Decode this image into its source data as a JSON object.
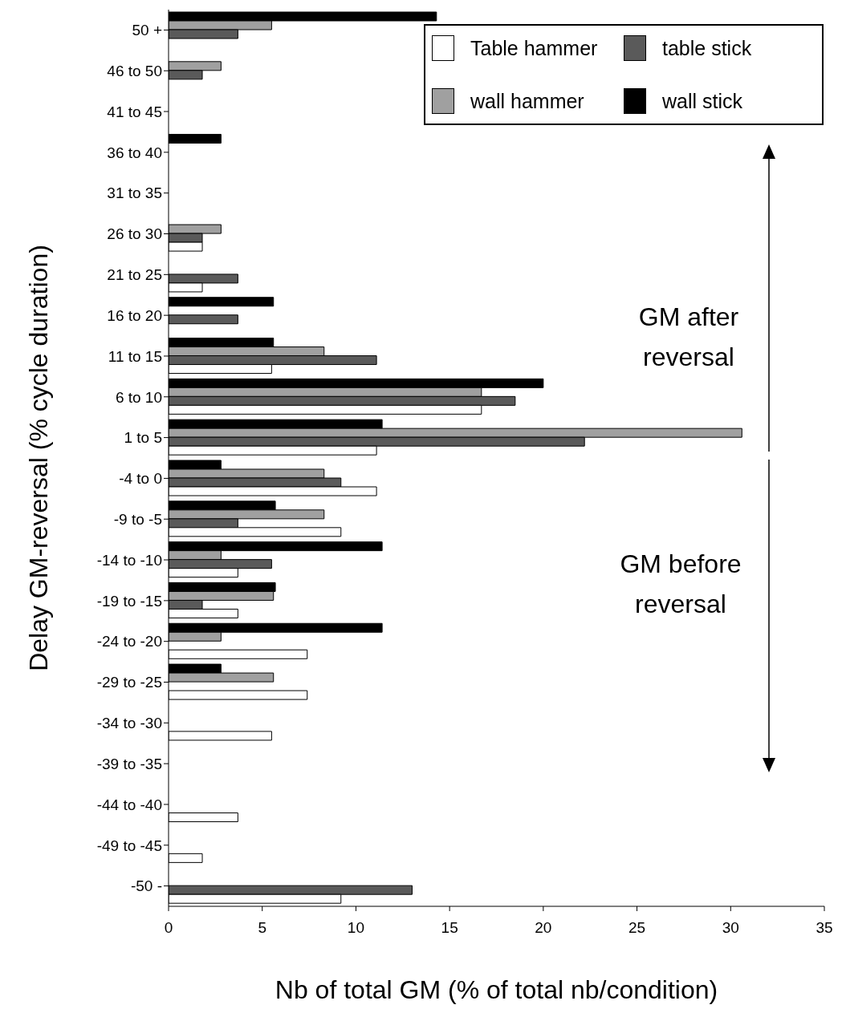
{
  "chart_data": {
    "type": "bar",
    "orientation": "horizontal",
    "xlabel": "Nb of total GM (% of total nb/condition)",
    "ylabel": "Delay GM-reversal (% cycle duration)",
    "categories": [
      "50 +",
      "46 to 50",
      "41 to 45",
      "36 to 40",
      "31 to 35",
      "26 to 30",
      "21 to 25",
      "16 to 20",
      "11 to 15",
      "6 to 10",
      "1 to 5",
      "-4 to 0",
      "-9 to -5",
      "-14 to -10",
      "-19 to -15",
      "-24 to -20",
      "-29 to -25",
      "-34 to -30",
      "-39 to -35",
      "-44 to -40",
      "-49 to -45",
      "-50 -"
    ],
    "series": [
      {
        "name": "Table hammer",
        "color": "#ffffff",
        "values": [
          0,
          0,
          0,
          0,
          0,
          1.8,
          1.8,
          0,
          5.5,
          16.7,
          11.1,
          11.1,
          9.2,
          3.7,
          3.7,
          7.4,
          7.4,
          5.5,
          0,
          3.7,
          1.8,
          9.2
        ]
      },
      {
        "name": "table stick",
        "color": "#5a5a5a",
        "values": [
          3.7,
          1.8,
          0,
          0,
          0,
          1.8,
          3.7,
          3.7,
          11.1,
          18.5,
          22.2,
          9.2,
          3.7,
          5.5,
          1.8,
          0,
          0,
          0,
          0,
          0,
          0,
          13
        ]
      },
      {
        "name": "wall hammer",
        "color": "#a0a0a0",
        "values": [
          5.5,
          2.8,
          0,
          0,
          0,
          2.8,
          0,
          0,
          8.3,
          16.7,
          30.6,
          8.3,
          8.3,
          2.8,
          5.6,
          2.8,
          5.6,
          0,
          0,
          0,
          0,
          0
        ]
      },
      {
        "name": "wall stick",
        "color": "#000000",
        "values": [
          14.3,
          0,
          0,
          2.8,
          0,
          0,
          0,
          5.6,
          5.6,
          20,
          11.4,
          2.8,
          5.7,
          11.4,
          5.7,
          11.4,
          2.8,
          0,
          0,
          0,
          0,
          0
        ]
      }
    ],
    "xlim": [
      0,
      35
    ],
    "xticks": [
      0,
      5,
      10,
      15,
      20,
      25,
      30,
      35
    ],
    "legend": "top right",
    "annotations": [
      "GM after reversal",
      "GM before reversal"
    ]
  }
}
